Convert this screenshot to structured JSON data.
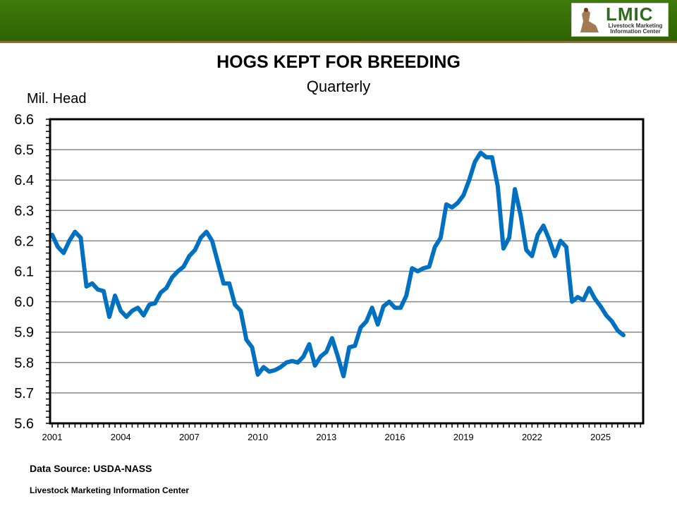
{
  "header": {
    "logo_big": "LMIC",
    "logo_small_1": "Livestock Marketing",
    "logo_small_2": "Information Center",
    "banner_color": "#336600"
  },
  "chart_data": {
    "type": "line",
    "title": "HOGS KEPT FOR BREEDING",
    "subtitle": "Quarterly",
    "ylabel": "Mil. Head",
    "xlabel": "",
    "ylim": [
      5.6,
      6.6
    ],
    "yticks": [
      "5.6",
      "5.7",
      "5.8",
      "5.9",
      "6.0",
      "6.1",
      "6.2",
      "6.3",
      "6.4",
      "6.5",
      "6.6"
    ],
    "xlim": [
      2001,
      2027
    ],
    "xticks": [
      "2001",
      "2004",
      "2007",
      "2010",
      "2013",
      "2016",
      "2019",
      "2022",
      "2025"
    ],
    "grid": true,
    "legend": "none",
    "line_color": "#0070C0",
    "start": "2001 Q1",
    "frequency": "quarterly",
    "values": [
      6.22,
      6.18,
      6.16,
      6.2,
      6.23,
      6.21,
      6.05,
      6.06,
      6.04,
      6.035,
      5.95,
      6.02,
      5.97,
      5.95,
      5.97,
      5.98,
      5.955,
      5.99,
      5.995,
      6.03,
      6.045,
      6.08,
      6.1,
      6.115,
      6.15,
      6.17,
      6.21,
      6.23,
      6.2,
      6.13,
      6.06,
      6.06,
      5.99,
      5.97,
      5.875,
      5.85,
      5.76,
      5.785,
      5.77,
      5.775,
      5.785,
      5.8,
      5.805,
      5.8,
      5.82,
      5.86,
      5.79,
      5.82,
      5.835,
      5.88,
      5.82,
      5.755,
      5.85,
      5.855,
      5.915,
      5.935,
      5.98,
      5.925,
      5.985,
      6.0,
      5.98,
      5.98,
      6.02,
      6.11,
      6.1,
      6.11,
      6.115,
      6.18,
      6.21,
      6.32,
      6.31,
      6.325,
      6.35,
      6.4,
      6.46,
      6.49,
      6.475,
      6.475,
      6.38,
      6.175,
      6.21,
      6.37,
      6.285,
      6.17,
      6.15,
      6.22,
      6.25,
      6.205,
      6.15,
      6.2,
      6.18,
      6.0,
      6.015,
      6.005,
      6.045,
      6.01,
      5.985,
      5.955,
      5.935,
      5.905,
      5.89
    ]
  },
  "footer": {
    "source": "Data Source:  USDA-NASS",
    "org": "Livestock Marketing Information Center"
  }
}
